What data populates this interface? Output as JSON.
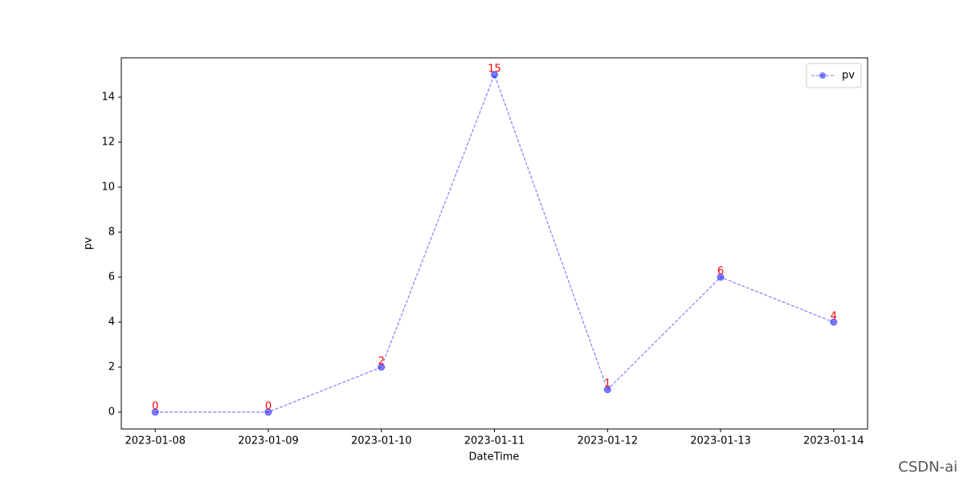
{
  "chart_data": {
    "type": "line",
    "x": [
      "2023-01-08",
      "2023-01-09",
      "2023-01-10",
      "2023-01-11",
      "2023-01-12",
      "2023-01-13",
      "2023-01-14"
    ],
    "series": [
      {
        "name": "pv",
        "color": "#0000ff",
        "alpha": 0.5,
        "values": [
          0,
          0,
          2,
          15,
          1,
          6,
          4
        ]
      }
    ],
    "value_label_color": "#ff0000",
    "x_label": "DateTime",
    "y_label": "pv",
    "ylim": [
      -0.75,
      15.75
    ],
    "yticks": [
      0,
      2,
      4,
      6,
      8,
      10,
      12,
      14
    ],
    "legend": "upper right",
    "grid": false
  },
  "watermark": "CSDN-ai"
}
